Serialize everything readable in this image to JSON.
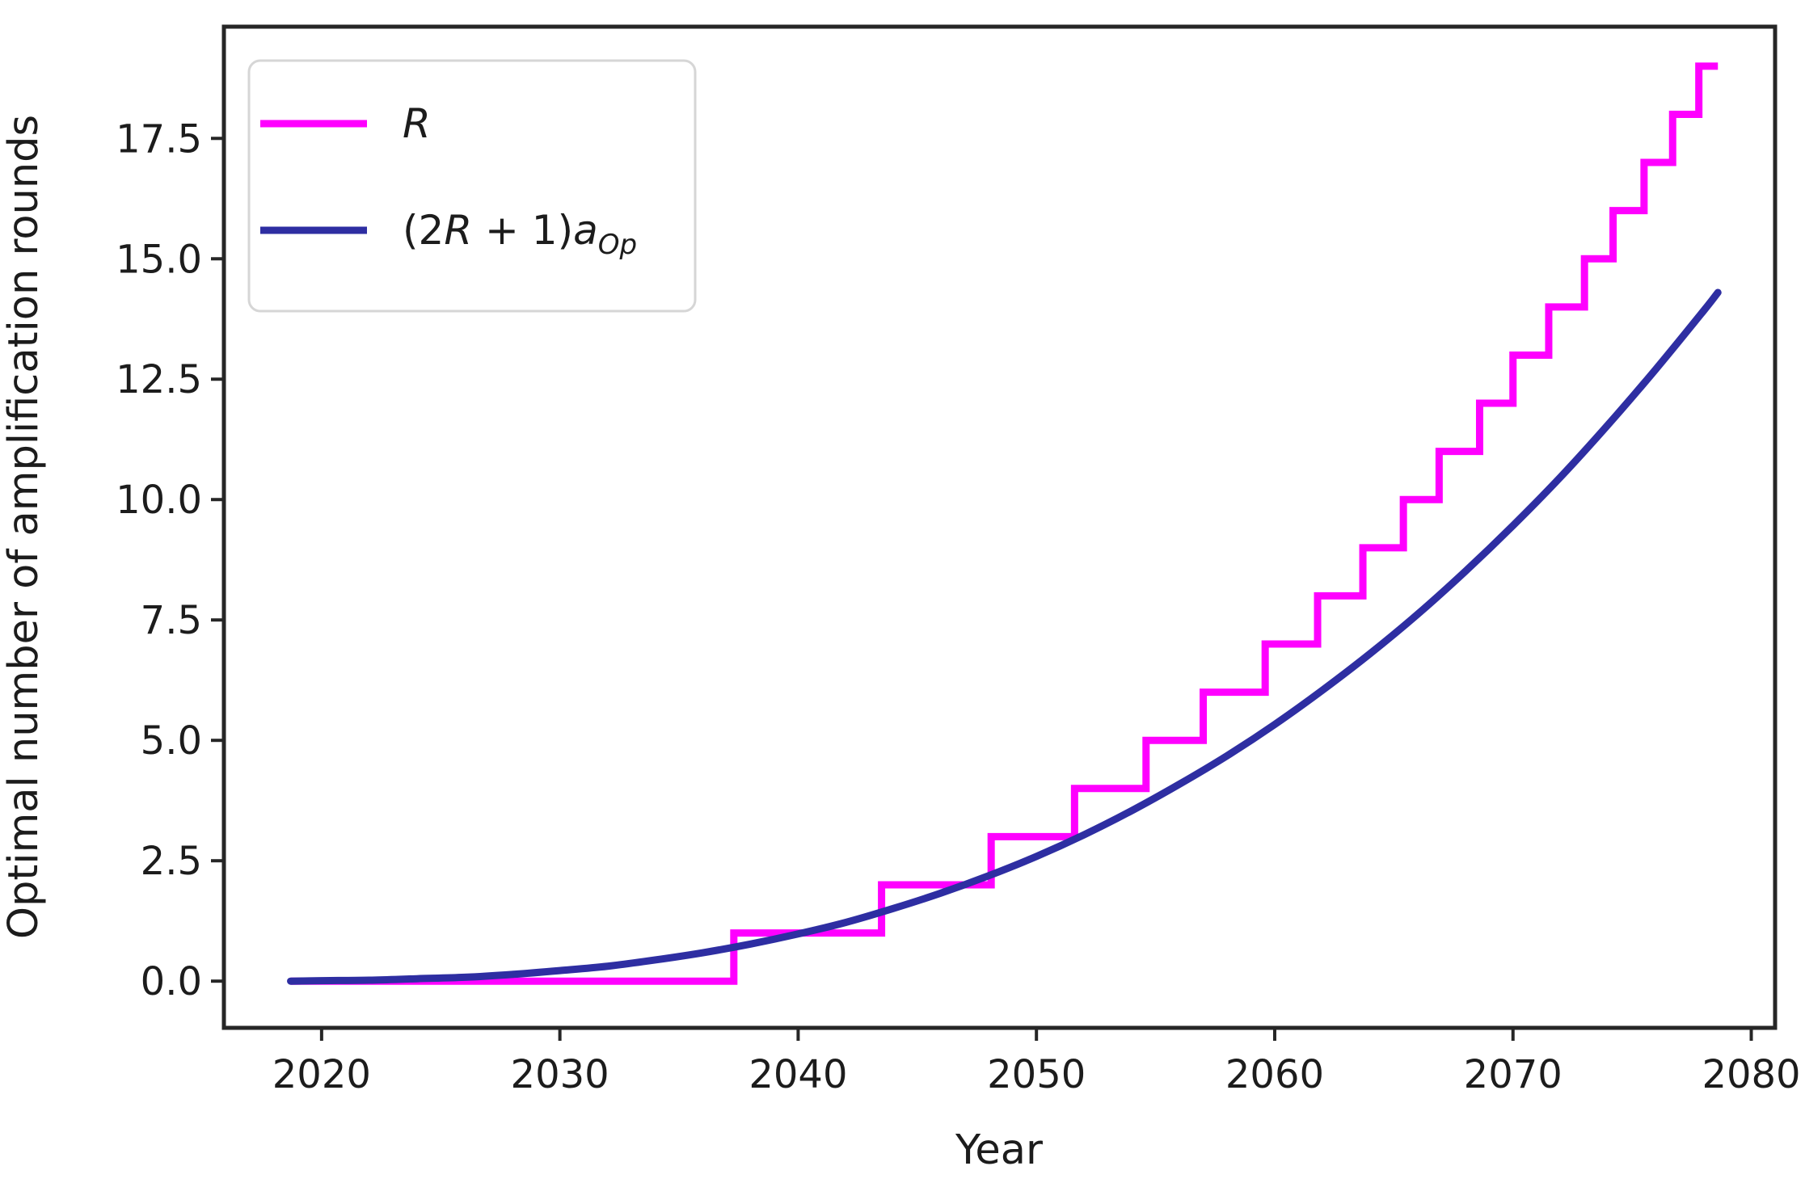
{
  "figure": {
    "background_color": "#ffffff",
    "spine_color": "#262626",
    "tick_color": "#262626",
    "text_color": "#1c1c1c"
  },
  "chart_data": {
    "type": "line",
    "title": "",
    "xlabel": "Year",
    "ylabel": "Optimal number of amplification rounds",
    "grid": false,
    "legend_position": "upper left",
    "xlim": [
      2015.9,
      2081.0
    ],
    "ylim": [
      -0.97,
      19.82
    ],
    "x_ticks": [
      "2020",
      "2030",
      "2040",
      "2050",
      "2060",
      "2070",
      "2080"
    ],
    "x_tick_values": [
      2020,
      2030,
      2040,
      2050,
      2060,
      2070,
      2080
    ],
    "y_ticks": [
      "0.0",
      "2.5",
      "5.0",
      "7.5",
      "10.0",
      "12.5",
      "15.0",
      "17.5"
    ],
    "y_tick_values": [
      0,
      2.5,
      5,
      7.5,
      10,
      12.5,
      15,
      17.5
    ],
    "series": [
      {
        "name": "R",
        "style": "step",
        "color": "#ff00ff",
        "line_width": 9,
        "start_year": 2018.7,
        "start_value": 0,
        "end_year": 2078.6,
        "end_value": 19,
        "jump_years": [
          2037.3,
          2043.5,
          2048.1,
          2051.6,
          2054.6,
          2057.0,
          2059.6,
          2061.8,
          2063.7,
          2065.4,
          2066.9,
          2068.6,
          2070.0,
          2071.5,
          2073.0,
          2074.2,
          2075.5,
          2076.7,
          2077.8
        ],
        "description": "Integer step function: value is k after the k-th jump year, 0 before the first jump."
      },
      {
        "name": "(2R + 1)a_Op",
        "style": "smooth",
        "color": "#2e2ea2",
        "line_width": 9,
        "x": [
          2018.7,
          2020,
          2022,
          2024,
          2026,
          2028,
          2030,
          2032,
          2034,
          2036,
          2038,
          2040,
          2042,
          2044,
          2046,
          2048,
          2050,
          2052,
          2054,
          2056,
          2058,
          2060,
          2062,
          2064,
          2066,
          2068,
          2070,
          2072,
          2074,
          2076,
          2078,
          2078.6
        ],
        "y": [
          0.0,
          0.01,
          0.02,
          0.05,
          0.08,
          0.14,
          0.22,
          0.31,
          0.44,
          0.59,
          0.77,
          0.98,
          1.22,
          1.51,
          1.83,
          2.19,
          2.59,
          3.04,
          3.54,
          4.09,
          4.68,
          5.33,
          6.04,
          6.8,
          7.62,
          8.51,
          9.46,
          10.47,
          11.56,
          12.71,
          13.92,
          14.3
        ]
      }
    ]
  },
  "legend": {
    "entries": [
      {
        "color": "#ff00ff",
        "label_parts": [
          {
            "t": "R",
            "italic": true,
            "sub": false
          }
        ]
      },
      {
        "color": "#2e2ea2",
        "label_parts": [
          {
            "t": "(2",
            "italic": false,
            "sub": false
          },
          {
            "t": "R",
            "italic": true,
            "sub": false
          },
          {
            "t": " + 1)",
            "italic": false,
            "sub": false
          },
          {
            "t": "a",
            "italic": true,
            "sub": false
          },
          {
            "t": "Op",
            "italic": true,
            "sub": true
          }
        ]
      }
    ]
  }
}
